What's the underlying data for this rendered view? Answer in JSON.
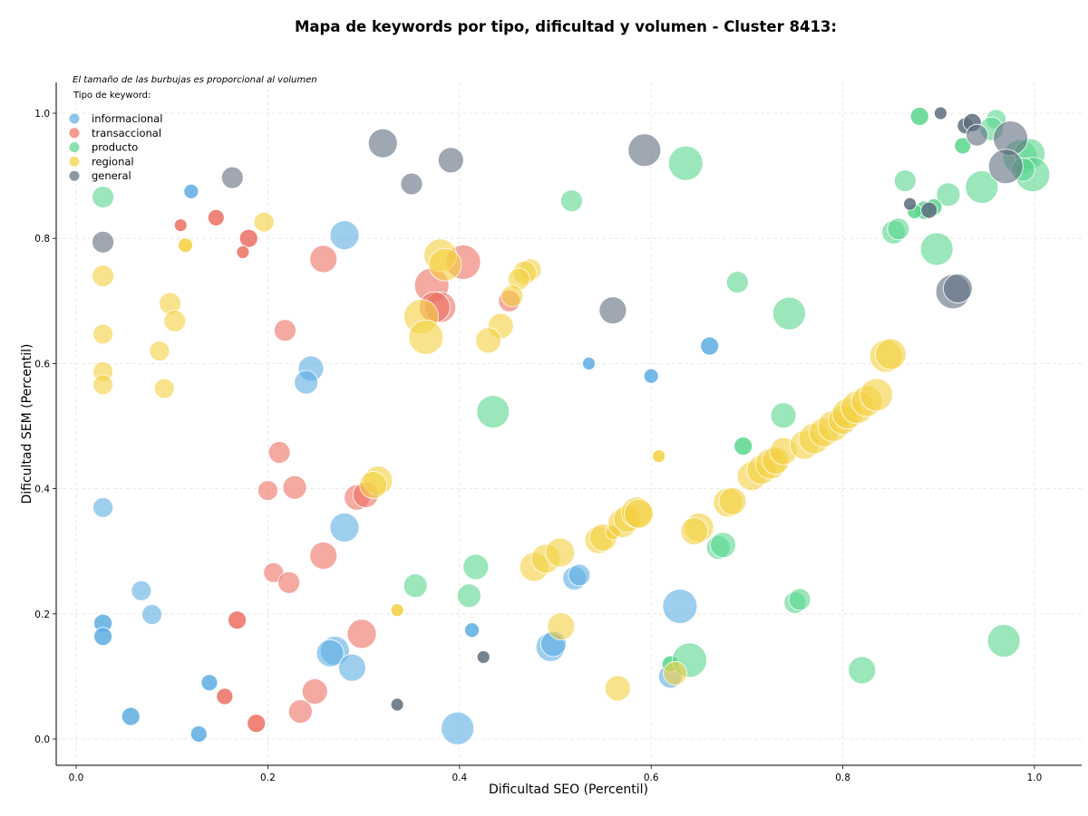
{
  "chart_data": {
    "type": "scatter",
    "title": "Mapa de keywords por tipo, dificultad y volumen - Cluster 8413:",
    "xlabel": "Dificultad SEO (Percentil)",
    "ylabel": "Dificultad SEM (Percentil)",
    "xlim": [
      -0.02,
      1.05
    ],
    "ylim": [
      -0.04,
      1.05
    ],
    "xticks": [
      "0.0",
      "0.2",
      "0.4",
      "0.6",
      "0.8",
      "1.0"
    ],
    "yticks": [
      "0.0",
      "0.2",
      "0.4",
      "0.6",
      "0.8",
      "1.0"
    ],
    "grid": true,
    "annotation": "El tamaño de las burbujas es proporcional al volumen",
    "legend_title": "Tipo de keyword:",
    "legend_position": "top-left",
    "series": [
      {
        "name": "informacional",
        "color": "#5DADE2",
        "points": [
          [
            0.12,
            0.875,
            8
          ],
          [
            0.28,
            0.805,
            16
          ],
          [
            0.245,
            0.592,
            14
          ],
          [
            0.24,
            0.57,
            13
          ],
          [
            0.028,
            0.37,
            11
          ],
          [
            0.028,
            0.185,
            10
          ],
          [
            0.028,
            0.164,
            10
          ],
          [
            0.068,
            0.237,
            11
          ],
          [
            0.079,
            0.199,
            11
          ],
          [
            0.057,
            0.036,
            10
          ],
          [
            0.139,
            0.09,
            9
          ],
          [
            0.128,
            0.008,
            9
          ],
          [
            0.28,
            0.338,
            16
          ],
          [
            0.27,
            0.141,
            16
          ],
          [
            0.265,
            0.137,
            15
          ],
          [
            0.288,
            0.114,
            15
          ],
          [
            0.398,
            0.017,
            18
          ],
          [
            0.413,
            0.174,
            8
          ],
          [
            0.495,
            0.147,
            16
          ],
          [
            0.498,
            0.152,
            14
          ],
          [
            0.52,
            0.257,
            13
          ],
          [
            0.525,
            0.262,
            12
          ],
          [
            0.535,
            0.6,
            7
          ],
          [
            0.6,
            0.58,
            8
          ],
          [
            0.62,
            0.1,
            13
          ],
          [
            0.63,
            0.212,
            19
          ],
          [
            0.661,
            0.628,
            10
          ]
        ]
      },
      {
        "name": "transaccional",
        "color": "#EC7063",
        "points": [
          [
            0.109,
            0.821,
            7
          ],
          [
            0.146,
            0.833,
            9
          ],
          [
            0.18,
            0.8,
            10
          ],
          [
            0.174,
            0.778,
            7
          ],
          [
            0.258,
            0.767,
            15
          ],
          [
            0.218,
            0.653,
            12
          ],
          [
            0.212,
            0.458,
            12
          ],
          [
            0.2,
            0.397,
            11
          ],
          [
            0.228,
            0.402,
            13
          ],
          [
            0.258,
            0.293,
            15
          ],
          [
            0.206,
            0.266,
            11
          ],
          [
            0.222,
            0.25,
            12
          ],
          [
            0.168,
            0.19,
            10
          ],
          [
            0.155,
            0.068,
            9
          ],
          [
            0.188,
            0.025,
            10
          ],
          [
            0.234,
            0.044,
            13
          ],
          [
            0.249,
            0.076,
            14
          ],
          [
            0.298,
            0.168,
            16
          ],
          [
            0.293,
            0.386,
            14
          ],
          [
            0.302,
            0.39,
            14
          ],
          [
            0.371,
            0.725,
            19
          ],
          [
            0.38,
            0.69,
            17
          ],
          [
            0.374,
            0.69,
            17
          ],
          [
            0.404,
            0.762,
            19
          ],
          [
            0.452,
            0.7,
            12
          ]
        ]
      },
      {
        "name": "producto",
        "color": "#58D68D",
        "points": [
          [
            0.028,
            0.866,
            12
          ],
          [
            0.517,
            0.86,
            12
          ],
          [
            0.636,
            0.92,
            19
          ],
          [
            0.69,
            0.73,
            12
          ],
          [
            0.744,
            0.68,
            18
          ],
          [
            0.435,
            0.523,
            18
          ],
          [
            0.354,
            0.245,
            13
          ],
          [
            0.417,
            0.275,
            14
          ],
          [
            0.41,
            0.229,
            13
          ],
          [
            0.62,
            0.12,
            9
          ],
          [
            0.64,
            0.126,
            19
          ],
          [
            0.67,
            0.306,
            13
          ],
          [
            0.675,
            0.31,
            14
          ],
          [
            0.696,
            0.468,
            10
          ],
          [
            0.738,
            0.517,
            14
          ],
          [
            0.75,
            0.218,
            12
          ],
          [
            0.755,
            0.223,
            12
          ],
          [
            0.82,
            0.11,
            15
          ],
          [
            0.968,
            0.157,
            18
          ],
          [
            0.853,
            0.81,
            13
          ],
          [
            0.858,
            0.815,
            12
          ],
          [
            0.865,
            0.892,
            12
          ],
          [
            0.898,
            0.783,
            18
          ],
          [
            0.91,
            0.87,
            13
          ],
          [
            0.945,
            0.882,
            18
          ],
          [
            0.88,
            0.995,
            10
          ],
          [
            0.925,
            0.948,
            9
          ],
          [
            0.96,
            0.99,
            11
          ],
          [
            0.955,
            0.975,
            13
          ],
          [
            0.985,
            0.93,
            19
          ],
          [
            0.995,
            0.935,
            17
          ],
          [
            0.998,
            0.902,
            19
          ],
          [
            0.988,
            0.91,
            13
          ],
          [
            0.885,
            0.845,
            10
          ],
          [
            0.895,
            0.85,
            9
          ],
          [
            0.875,
            0.843,
            8
          ]
        ]
      },
      {
        "name": "regional",
        "color": "#F4D03F",
        "points": [
          [
            0.196,
            0.826,
            11
          ],
          [
            0.114,
            0.789,
            8
          ],
          [
            0.028,
            0.74,
            12
          ],
          [
            0.098,
            0.696,
            12
          ],
          [
            0.103,
            0.668,
            12
          ],
          [
            0.028,
            0.647,
            11
          ],
          [
            0.087,
            0.62,
            11
          ],
          [
            0.028,
            0.587,
            11
          ],
          [
            0.028,
            0.566,
            11
          ],
          [
            0.092,
            0.56,
            11
          ],
          [
            0.38,
            0.773,
            18
          ],
          [
            0.385,
            0.758,
            18
          ],
          [
            0.36,
            0.675,
            19
          ],
          [
            0.365,
            0.642,
            19
          ],
          [
            0.474,
            0.75,
            12
          ],
          [
            0.468,
            0.745,
            13
          ],
          [
            0.462,
            0.735,
            12
          ],
          [
            0.455,
            0.708,
            12
          ],
          [
            0.443,
            0.66,
            14
          ],
          [
            0.43,
            0.637,
            14
          ],
          [
            0.315,
            0.413,
            16
          ],
          [
            0.31,
            0.406,
            15
          ],
          [
            0.335,
            0.206,
            7
          ],
          [
            0.478,
            0.275,
            16
          ],
          [
            0.49,
            0.288,
            16
          ],
          [
            0.505,
            0.298,
            16
          ],
          [
            0.506,
            0.18,
            15
          ],
          [
            0.545,
            0.318,
            15
          ],
          [
            0.55,
            0.322,
            15
          ],
          [
            0.56,
            0.33,
            8
          ],
          [
            0.57,
            0.345,
            16
          ],
          [
            0.575,
            0.352,
            15
          ],
          [
            0.585,
            0.362,
            17
          ],
          [
            0.587,
            0.36,
            16
          ],
          [
            0.565,
            0.081,
            14
          ],
          [
            0.608,
            0.452,
            7
          ],
          [
            0.625,
            0.105,
            13
          ],
          [
            0.65,
            0.338,
            16
          ],
          [
            0.645,
            0.332,
            15
          ],
          [
            0.68,
            0.378,
            16
          ],
          [
            0.685,
            0.38,
            15
          ],
          [
            0.705,
            0.42,
            16
          ],
          [
            0.715,
            0.43,
            16
          ],
          [
            0.725,
            0.44,
            17
          ],
          [
            0.73,
            0.445,
            15
          ],
          [
            0.738,
            0.46,
            15
          ],
          [
            0.76,
            0.47,
            16
          ],
          [
            0.77,
            0.48,
            17
          ],
          [
            0.78,
            0.49,
            16
          ],
          [
            0.79,
            0.5,
            17
          ],
          [
            0.8,
            0.51,
            16
          ],
          [
            0.805,
            0.52,
            17
          ],
          [
            0.815,
            0.53,
            18
          ],
          [
            0.825,
            0.54,
            17
          ],
          [
            0.835,
            0.55,
            18
          ],
          [
            0.845,
            0.612,
            18
          ],
          [
            0.85,
            0.615,
            17
          ]
        ]
      },
      {
        "name": "general",
        "color": "#5D6D7E",
        "points": [
          [
            0.163,
            0.897,
            12
          ],
          [
            0.32,
            0.952,
            16
          ],
          [
            0.35,
            0.887,
            12
          ],
          [
            0.391,
            0.925,
            14
          ],
          [
            0.593,
            0.941,
            18
          ],
          [
            0.028,
            0.794,
            12
          ],
          [
            0.56,
            0.685,
            15
          ],
          [
            0.335,
            0.055,
            7
          ],
          [
            0.425,
            0.131,
            7
          ],
          [
            0.87,
            0.855,
            7
          ],
          [
            0.89,
            0.845,
            9
          ],
          [
            0.902,
            1.0,
            7
          ],
          [
            0.928,
            0.98,
            9
          ],
          [
            0.935,
            0.985,
            10
          ],
          [
            0.94,
            0.965,
            12
          ],
          [
            0.975,
            0.96,
            19
          ],
          [
            0.97,
            0.915,
            19
          ],
          [
            0.915,
            0.715,
            19
          ],
          [
            0.92,
            0.72,
            16
          ]
        ]
      }
    ]
  }
}
